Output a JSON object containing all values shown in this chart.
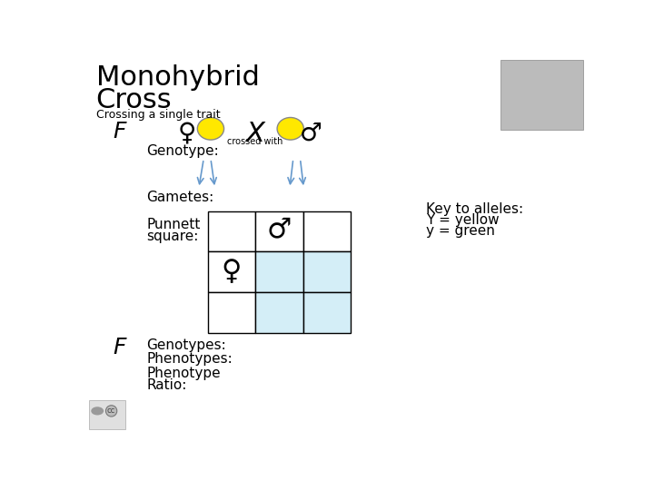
{
  "title_line1": "Monohybrid",
  "title_line2": "Cross",
  "subtitle": "Crossing a single trait",
  "f1_label": "F",
  "genotype_label": "Genotype:",
  "gametes_label": "Gametes:",
  "punnett_label1": "Punnett",
  "punnett_label2": "square:",
  "f2_label": "F",
  "genotypes_label": "Genotypes:",
  "phenotypes_label": "Phenotypes:",
  "phenotype_ratio_label1": "Phenotype",
  "phenotype_ratio_label2": "Ratio:",
  "key_title": "Key to alleles:",
  "key_y": "Y = yellow",
  "key_y2": "y = green",
  "cross_label": "crossed with",
  "bg_color": "#ffffff",
  "yellow_color": "#FFE800",
  "female_symbol": "♀",
  "male_symbol": "♂",
  "cross_symbol": "X",
  "punnett_fill_color": "#d4eef7",
  "arrow_color": "#6699cc",
  "title_font_size": 22,
  "subtitle_font_size": 9,
  "label_font_size": 11,
  "f_font_size": 18,
  "symbol_font_size": 20,
  "key_font_size": 11
}
